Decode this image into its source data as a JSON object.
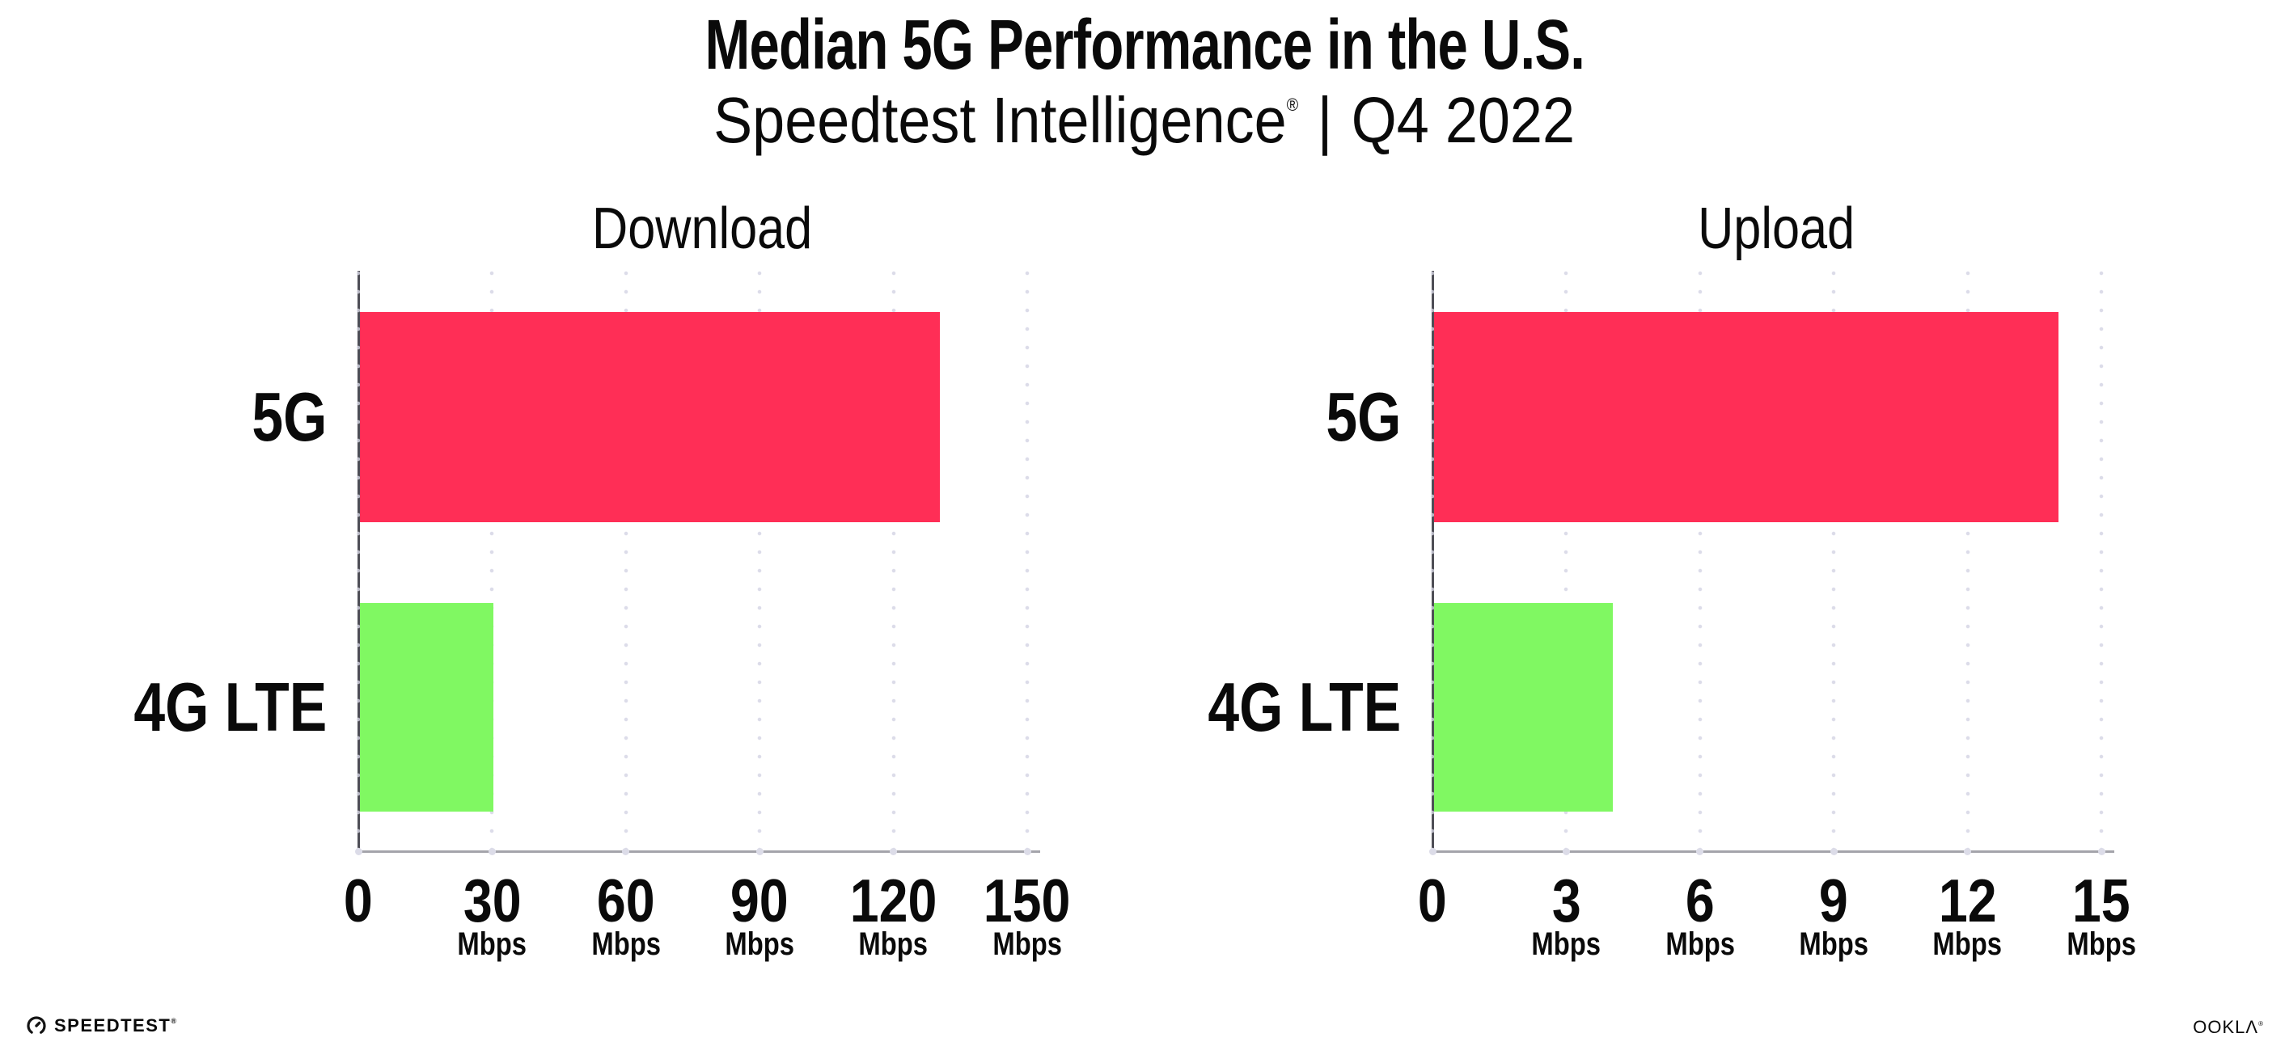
{
  "header": {
    "title": "Median 5G Performance in the U.S.",
    "subtitle_brand": "Speedtest Intelligence",
    "subtitle_reg": "®",
    "subtitle_separator": "|",
    "subtitle_period": "Q4 2022"
  },
  "footer": {
    "speedtest_wordmark": "SPEEDTEST",
    "speedtest_reg": "®",
    "ookla_wordmark": "OOKLΛ",
    "ookla_reg": "®"
  },
  "colors": {
    "bar_5g": "#ff2e56",
    "bar_4g_lte": "#80f862",
    "grid_dot": "#dcdce9",
    "axis_x": "#a4a4ab",
    "axis_y": "#4e4e56",
    "text": "#0a0a0a"
  },
  "chart_data": [
    {
      "type": "bar",
      "orientation": "horizontal",
      "title": "Download",
      "categories": [
        "5G",
        "4G LTE"
      ],
      "values": [
        130,
        30
      ],
      "unit": "Mbps",
      "xlim": [
        0,
        150
      ],
      "ticks": [
        0,
        30,
        60,
        90,
        120,
        150
      ],
      "bar_colors": [
        "#ff2e56",
        "#80f862"
      ],
      "grid": "dotted-vertical",
      "legend": "none"
    },
    {
      "type": "bar",
      "orientation": "horizontal",
      "title": "Upload",
      "categories": [
        "5G",
        "4G LTE"
      ],
      "values": [
        14,
        4
      ],
      "unit": "Mbps",
      "xlim": [
        0,
        15
      ],
      "ticks": [
        0,
        3,
        6,
        9,
        12,
        15
      ],
      "bar_colors": [
        "#ff2e56",
        "#80f862"
      ],
      "grid": "dotted-vertical",
      "legend": "none"
    }
  ]
}
